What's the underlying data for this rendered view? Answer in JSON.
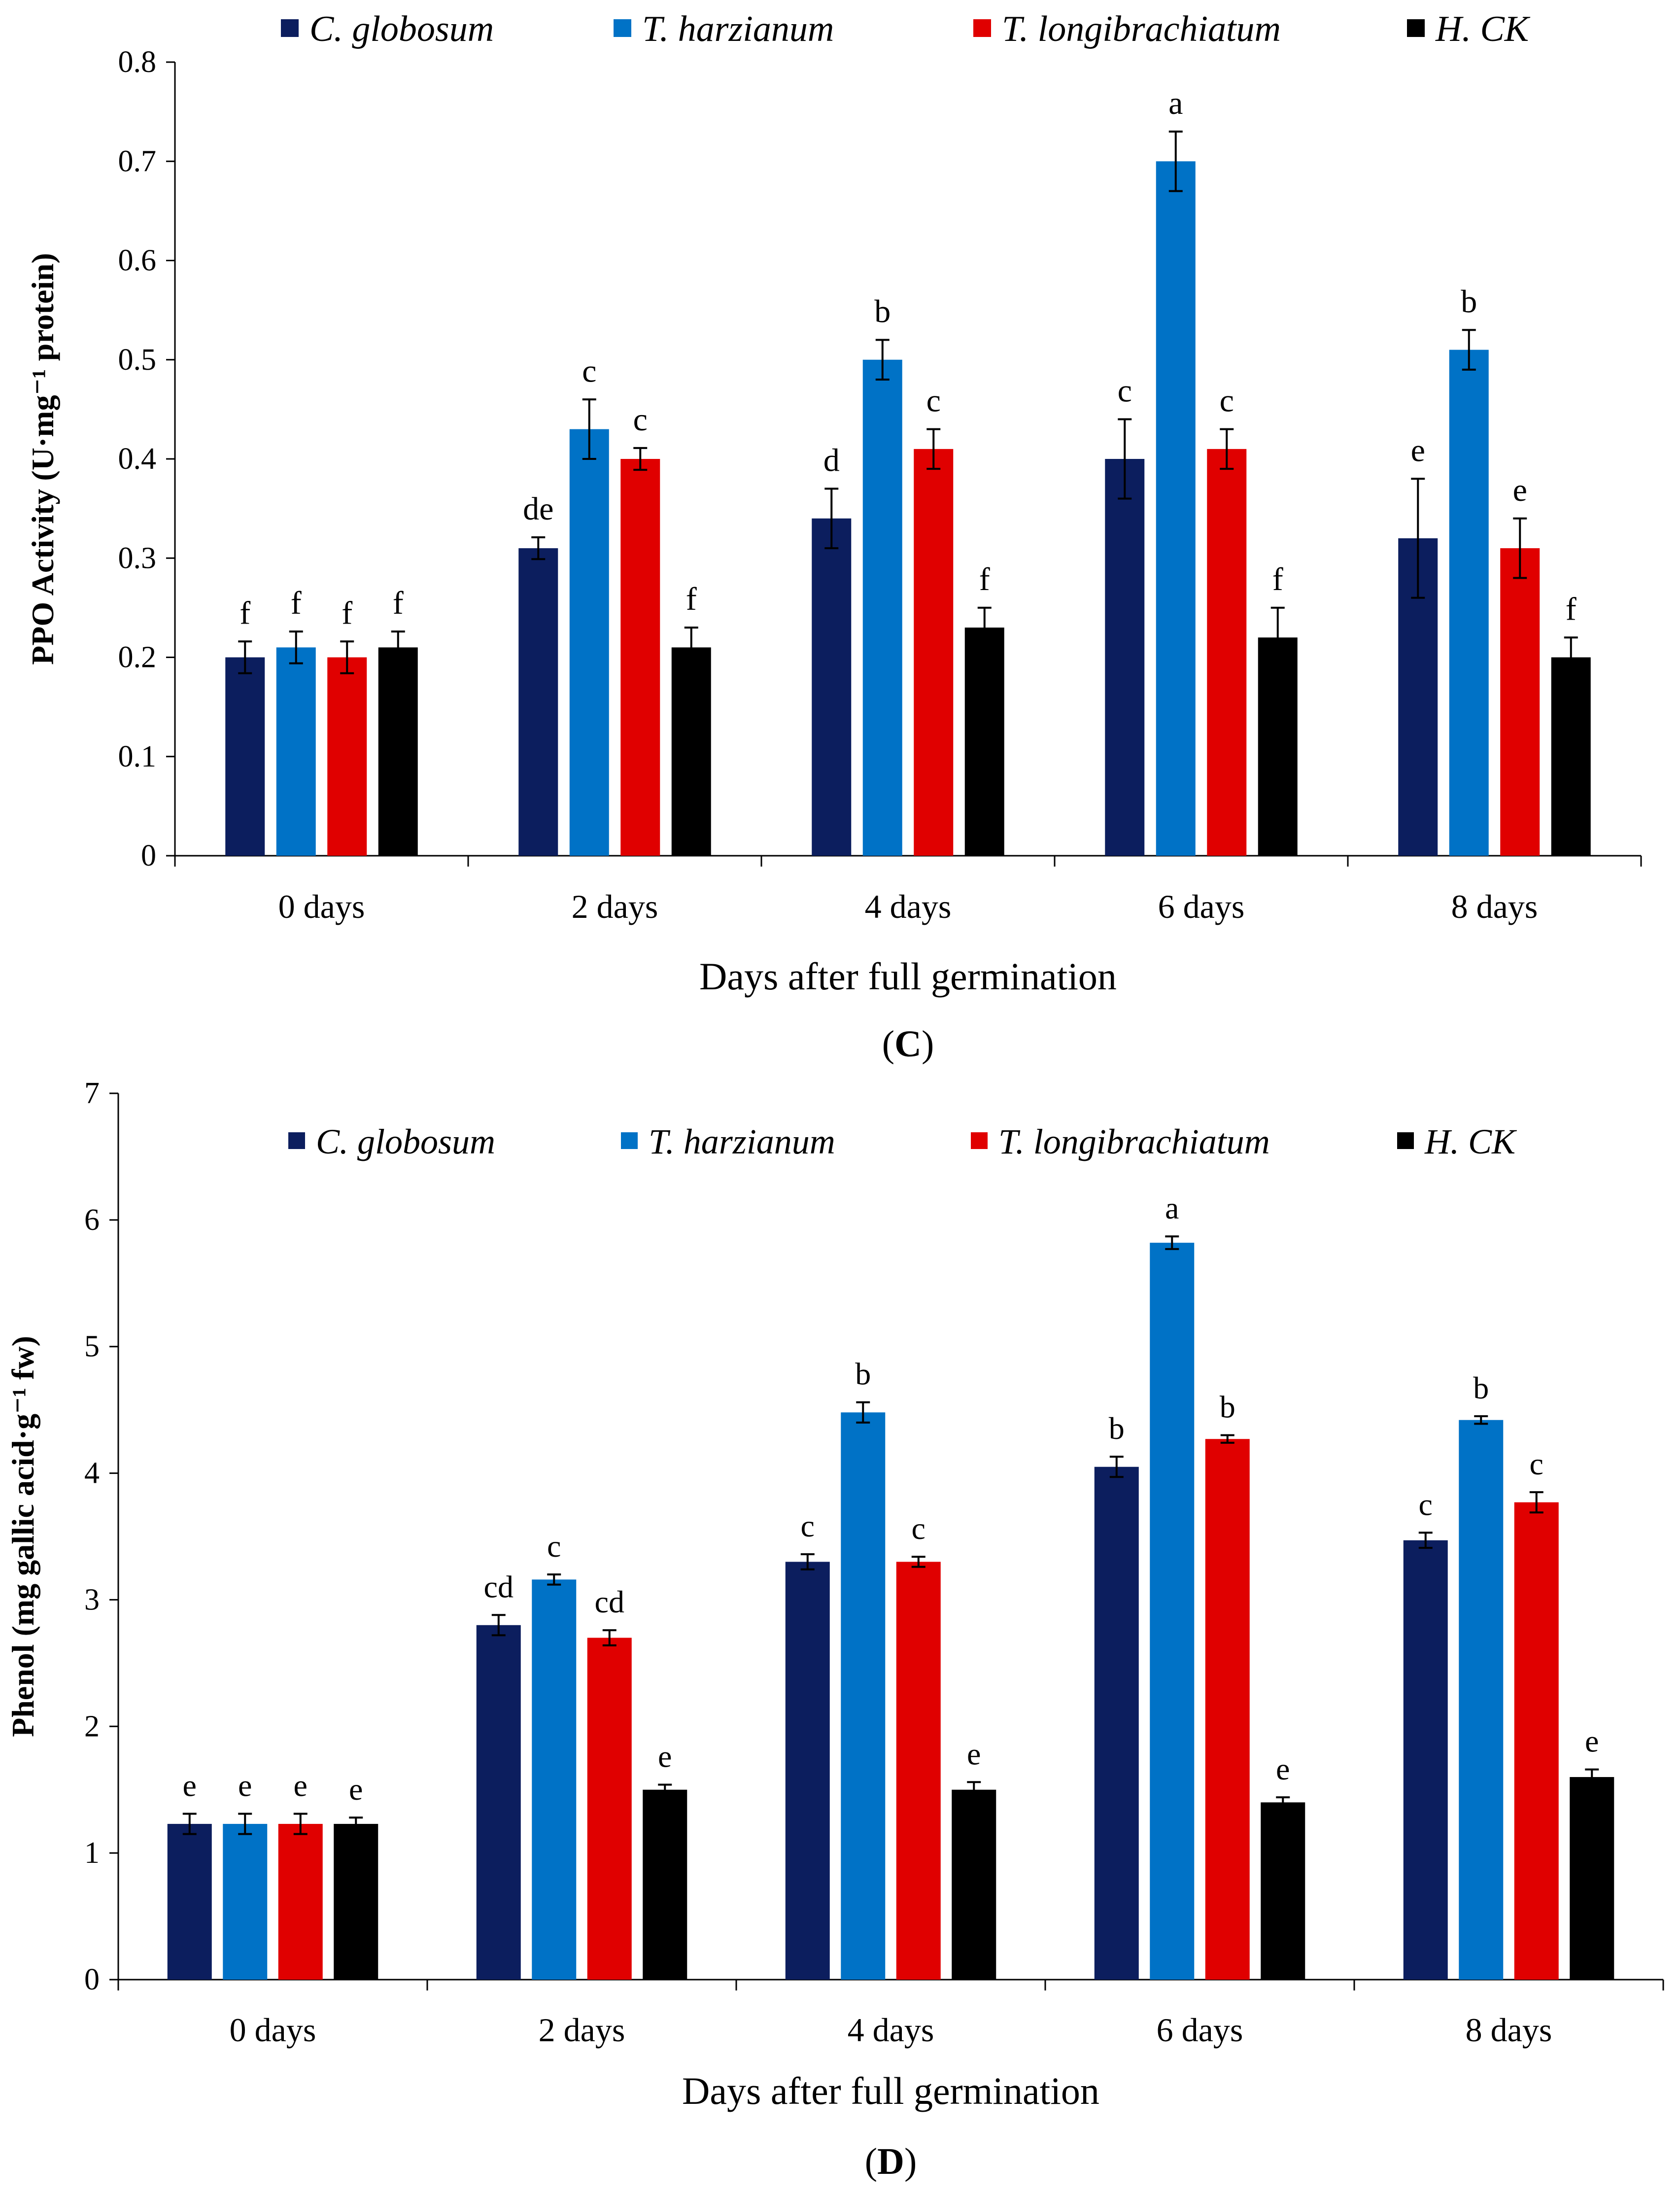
{
  "chart_data": [
    {
      "type": "bar",
      "panel_label": "C",
      "title": "",
      "xlabel": "Days after full germination",
      "ylabel": "PPO Activity (U·mg⁻¹ protein)",
      "ylim": [
        0,
        0.8
      ],
      "yticks": [
        "0",
        "0.1",
        "0.2",
        "0.3",
        "0.4",
        "0.5",
        "0.6",
        "0.7",
        "0.8"
      ],
      "ytick_values": [
        0,
        0.1,
        0.2,
        0.3,
        0.4,
        0.5,
        0.6,
        0.7,
        0.8
      ],
      "categories": [
        "0 days",
        "2 days",
        "4 days",
        "6 days",
        "8 days"
      ],
      "legend_position": "top",
      "series": [
        {
          "name": "C. globosum",
          "color": "#0c1e5e",
          "values": [
            0.2,
            0.31,
            0.34,
            0.4,
            0.32
          ],
          "errors": [
            0.016,
            0.011,
            0.03,
            0.04,
            0.06
          ],
          "letters": [
            "f",
            "de",
            "d",
            "c",
            "e"
          ]
        },
        {
          "name": "T. harzianum",
          "color": "#0072c6",
          "values": [
            0.21,
            0.43,
            0.5,
            0.7,
            0.51
          ],
          "errors": [
            0.016,
            0.03,
            0.02,
            0.03,
            0.02
          ],
          "letters": [
            "f",
            "c",
            "b",
            "a",
            "b"
          ]
        },
        {
          "name": "T. longibrachiatum",
          "color": "#e00000",
          "values": [
            0.2,
            0.4,
            0.41,
            0.41,
            0.31
          ],
          "errors": [
            0.016,
            0.011,
            0.02,
            0.02,
            0.03
          ],
          "letters": [
            "f",
            "c",
            "c",
            "c",
            "e"
          ]
        },
        {
          "name": "H. CK",
          "color": "#000000",
          "values": [
            0.21,
            0.21,
            0.23,
            0.22,
            0.2
          ],
          "errors": [
            0.016,
            0.02,
            0.02,
            0.03,
            0.02
          ],
          "letters": [
            "f",
            "f",
            "f",
            "f",
            "f"
          ]
        }
      ]
    },
    {
      "type": "bar",
      "panel_label": "D",
      "title": "",
      "xlabel": "Days after full germination",
      "ylabel": "Phenol (mg gallic acid·g⁻¹ fw)",
      "ylim": [
        0,
        7
      ],
      "yticks": [
        "0",
        "1",
        "2",
        "3",
        "4",
        "5",
        "6",
        "7"
      ],
      "ytick_values": [
        0,
        1,
        2,
        3,
        4,
        5,
        6,
        7
      ],
      "categories": [
        "0 days",
        "2 days",
        "4 days",
        "6 days",
        "8 days"
      ],
      "legend_position": "top",
      "series": [
        {
          "name": "C. globosum",
          "color": "#0c1e5e",
          "values": [
            1.23,
            2.8,
            3.3,
            4.05,
            3.47
          ],
          "errors": [
            0.08,
            0.08,
            0.06,
            0.08,
            0.06
          ],
          "letters": [
            "e",
            "cd",
            "c",
            "b",
            "c"
          ]
        },
        {
          "name": "T. harzianum",
          "color": "#0072c6",
          "values": [
            1.23,
            3.16,
            4.48,
            5.82,
            4.42
          ],
          "errors": [
            0.08,
            0.04,
            0.08,
            0.05,
            0.03
          ],
          "letters": [
            "e",
            "c",
            "b",
            "a",
            "b"
          ]
        },
        {
          "name": "T. longibrachiatum",
          "color": "#e00000",
          "values": [
            1.23,
            2.7,
            3.3,
            4.27,
            3.77
          ],
          "errors": [
            0.08,
            0.06,
            0.04,
            0.03,
            0.08
          ],
          "letters": [
            "e",
            "cd",
            "c",
            "b",
            "c"
          ]
        },
        {
          "name": "H. CK",
          "color": "#000000",
          "values": [
            1.23,
            1.5,
            1.5,
            1.4,
            1.6
          ],
          "errors": [
            0.05,
            0.04,
            0.06,
            0.04,
            0.06
          ],
          "letters": [
            "e",
            "e",
            "e",
            "e",
            "e"
          ]
        }
      ]
    }
  ]
}
